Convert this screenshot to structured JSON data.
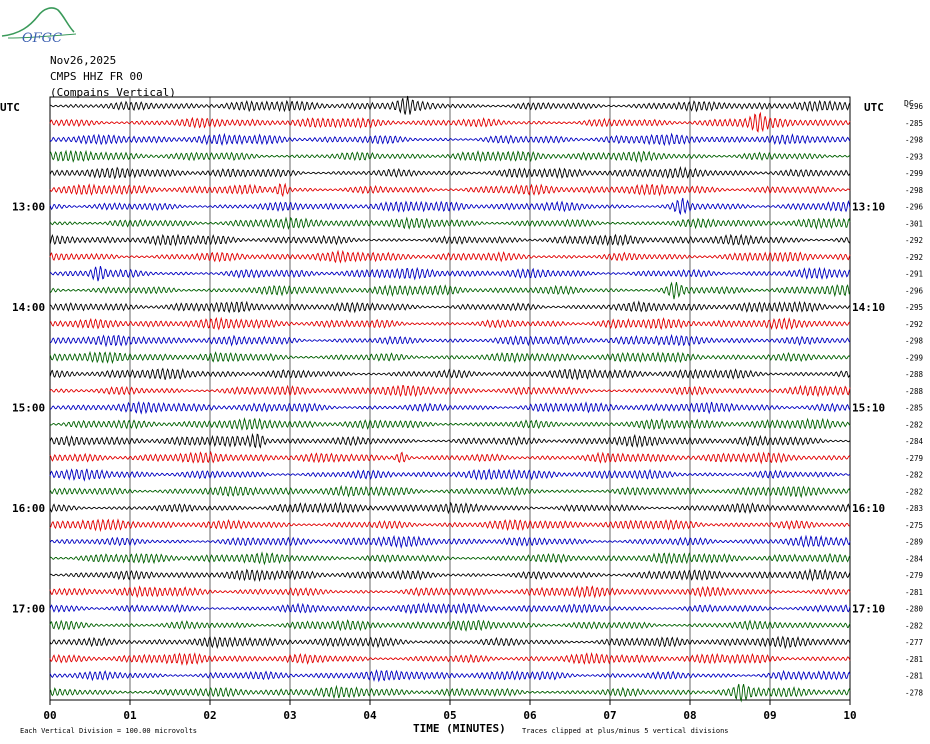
{
  "header": {
    "logo_text": "OFGC",
    "date": "Nov26,2025",
    "station": "CMPS HHZ FR 00",
    "location": "(Compains Vertical)"
  },
  "left_axis_label": "UTC",
  "right_axis_label": "UTC",
  "dc_label": "DC",
  "xlabel": "TIME (MINUTES)",
  "footnote_scale": "Each Vertical Division = 100.00 microvolts",
  "footnote_clip": "Traces clipped at plus/minus 5 vertical divisions",
  "colors": {
    "trace_cycle": [
      "#000000",
      "#e00000",
      "#0000c0",
      "#006000"
    ],
    "grid": "#000000"
  },
  "chart_data": {
    "type": "line",
    "title": "CMPS HHZ FR 00",
    "xlabel": "TIME (MINUTES)",
    "xlim": [
      0,
      10
    ],
    "x_ticks": [
      "00",
      "01",
      "02",
      "03",
      "04",
      "05",
      "06",
      "07",
      "08",
      "09",
      "10"
    ],
    "row_count": 36,
    "left_time_labels": [
      {
        "row": 6,
        "label": "13:00"
      },
      {
        "row": 12,
        "label": "14:00"
      },
      {
        "row": 18,
        "label": "15:00"
      },
      {
        "row": 24,
        "label": "16:00"
      },
      {
        "row": 30,
        "label": "17:00"
      }
    ],
    "right_time_labels": [
      {
        "row": 6,
        "label": "13:10"
      },
      {
        "row": 12,
        "label": "14:10"
      },
      {
        "row": 18,
        "label": "15:10"
      },
      {
        "row": 24,
        "label": "16:10"
      },
      {
        "row": 30,
        "label": "17:10"
      }
    ],
    "dc_offsets": [
      -296,
      -285,
      -298,
      -293,
      -299,
      -298,
      -296,
      -301,
      -292,
      -292,
      -291,
      -296,
      -295,
      -292,
      -298,
      -299,
      -288,
      -288,
      -285,
      -282,
      -284,
      -279,
      -282,
      -282,
      -283,
      -275,
      -289,
      -284,
      -279,
      -281,
      -280,
      -282,
      -277,
      -281,
      -281,
      -278
    ],
    "bursts": [
      {
        "row": 0,
        "x": 4.45
      },
      {
        "row": 1,
        "x": 8.85
      },
      {
        "row": 5,
        "x": 2.9
      },
      {
        "row": 6,
        "x": 7.9
      },
      {
        "row": 10,
        "x": 0.6
      },
      {
        "row": 11,
        "x": 7.8
      },
      {
        "row": 20,
        "x": 2.6
      },
      {
        "row": 21,
        "x": 4.4
      },
      {
        "row": 35,
        "x": 8.65
      }
    ]
  }
}
